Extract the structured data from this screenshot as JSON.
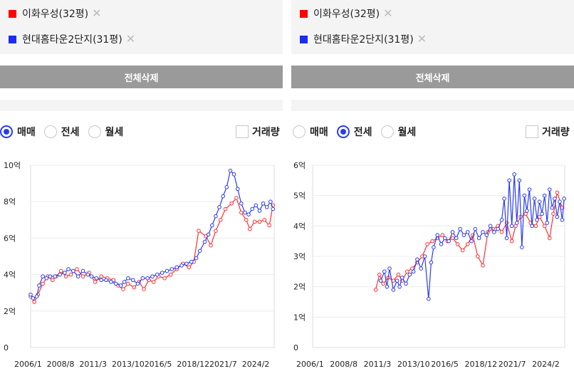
{
  "panels": [
    {
      "legend": [
        {
          "label": "이화우성(32평)",
          "color": "#ff0000"
        },
        {
          "label": "현대홈타운2단지(31평)",
          "color": "#1a2cf0"
        }
      ],
      "delete_all_label": "전체삭제",
      "radios": [
        {
          "label": "매매",
          "selected": true
        },
        {
          "label": "전세",
          "selected": false
        },
        {
          "label": "월세",
          "selected": false
        }
      ],
      "volume_label": "거래량"
    },
    {
      "legend": [
        {
          "label": "이화우성(32평)",
          "color": "#ff0000"
        },
        {
          "label": "현대홈타운2단지(31평)",
          "color": "#1a2cf0"
        }
      ],
      "delete_all_label": "전체삭제",
      "radios": [
        {
          "label": "매매",
          "selected": false
        },
        {
          "label": "전세",
          "selected": true
        },
        {
          "label": "월세",
          "selected": false
        }
      ],
      "volume_label": "거래량"
    }
  ],
  "chart_data": [
    {
      "type": "line",
      "title": "",
      "xlabel": "",
      "ylabel": "",
      "x_ticks": [
        "2006/1",
        "2008/8",
        "2011/3",
        "2013/10",
        "2016/5",
        "2018/12",
        "2021/7",
        "2024/2"
      ],
      "y_ticks": [
        "0",
        "2억",
        "4억",
        "6억",
        "8억",
        "10억"
      ],
      "xlim": [
        2006.0,
        2026.0
      ],
      "ylim": [
        0,
        10
      ],
      "grid": "horizontal",
      "series": [
        {
          "name": "이화우성(32평)",
          "color": "#ff3030",
          "points": [
            [
              2006.0,
              2.8
            ],
            [
              2006.3,
              2.5
            ],
            [
              2006.6,
              2.9
            ],
            [
              2007.0,
              3.5
            ],
            [
              2007.4,
              3.9
            ],
            [
              2007.8,
              3.7
            ],
            [
              2008.1,
              3.9
            ],
            [
              2008.5,
              4.2
            ],
            [
              2008.9,
              3.9
            ],
            [
              2009.3,
              4.0
            ],
            [
              2009.8,
              4.3
            ],
            [
              2010.3,
              3.9
            ],
            [
              2010.8,
              4.1
            ],
            [
              2011.3,
              3.6
            ],
            [
              2011.8,
              3.9
            ],
            [
              2012.3,
              3.8
            ],
            [
              2012.8,
              3.7
            ],
            [
              2013.2,
              3.4
            ],
            [
              2013.6,
              3.2
            ],
            [
              2014.0,
              3.5
            ],
            [
              2014.5,
              3.3
            ],
            [
              2014.9,
              3.6
            ],
            [
              2015.3,
              3.2
            ],
            [
              2015.7,
              3.7
            ],
            [
              2016.1,
              3.6
            ],
            [
              2016.5,
              3.9
            ],
            [
              2017.0,
              3.8
            ],
            [
              2017.5,
              4.0
            ],
            [
              2018.0,
              4.3
            ],
            [
              2018.5,
              4.6
            ],
            [
              2019.0,
              4.4
            ],
            [
              2019.4,
              4.7
            ],
            [
              2019.8,
              6.4
            ],
            [
              2020.4,
              6.1
            ],
            [
              2020.8,
              5.6
            ],
            [
              2021.2,
              6.4
            ],
            [
              2021.6,
              7.0
            ],
            [
              2022.0,
              7.6
            ],
            [
              2022.5,
              7.9
            ],
            [
              2022.9,
              8.2
            ],
            [
              2023.3,
              7.4
            ],
            [
              2023.7,
              7.0
            ],
            [
              2024.0,
              6.5
            ],
            [
              2024.4,
              6.9
            ],
            [
              2024.8,
              6.9
            ],
            [
              2025.2,
              7.0
            ],
            [
              2025.6,
              6.7
            ],
            [
              2025.9,
              7.8
            ]
          ]
        },
        {
          "name": "현대홈타운2단지(31평)",
          "color": "#2a3cf0",
          "points": [
            [
              2006.0,
              2.9
            ],
            [
              2006.2,
              2.7
            ],
            [
              2006.5,
              2.8
            ],
            [
              2006.7,
              3.4
            ],
            [
              2007.0,
              3.9
            ],
            [
              2007.3,
              3.8
            ],
            [
              2007.6,
              3.9
            ],
            [
              2008.0,
              3.9
            ],
            [
              2008.4,
              4.0
            ],
            [
              2008.8,
              4.1
            ],
            [
              2009.1,
              4.3
            ],
            [
              2009.5,
              4.2
            ],
            [
              2009.9,
              3.9
            ],
            [
              2010.3,
              4.2
            ],
            [
              2010.7,
              4.0
            ],
            [
              2011.0,
              3.9
            ],
            [
              2011.4,
              3.8
            ],
            [
              2011.8,
              3.7
            ],
            [
              2012.2,
              3.7
            ],
            [
              2012.6,
              3.6
            ],
            [
              2013.0,
              3.5
            ],
            [
              2013.4,
              3.4
            ],
            [
              2013.7,
              3.6
            ],
            [
              2014.0,
              3.8
            ],
            [
              2014.4,
              3.7
            ],
            [
              2014.8,
              3.5
            ],
            [
              2015.2,
              3.8
            ],
            [
              2015.6,
              3.8
            ],
            [
              2016.0,
              3.9
            ],
            [
              2016.4,
              4.0
            ],
            [
              2016.8,
              4.1
            ],
            [
              2017.2,
              4.2
            ],
            [
              2017.6,
              4.3
            ],
            [
              2018.0,
              4.4
            ],
            [
              2018.4,
              4.5
            ],
            [
              2018.8,
              4.6
            ],
            [
              2019.2,
              4.7
            ],
            [
              2019.6,
              4.9
            ],
            [
              2019.9,
              5.3
            ],
            [
              2020.3,
              5.8
            ],
            [
              2020.6,
              6.2
            ],
            [
              2020.9,
              6.7
            ],
            [
              2021.2,
              7.2
            ],
            [
              2021.5,
              7.7
            ],
            [
              2021.8,
              8.3
            ],
            [
              2022.1,
              8.8
            ],
            [
              2022.4,
              9.7
            ],
            [
              2022.7,
              9.5
            ],
            [
              2023.0,
              8.7
            ],
            [
              2023.3,
              7.9
            ],
            [
              2023.6,
              7.4
            ],
            [
              2023.9,
              7.3
            ],
            [
              2024.2,
              7.6
            ],
            [
              2024.5,
              7.8
            ],
            [
              2024.8,
              7.5
            ],
            [
              2025.1,
              7.9
            ],
            [
              2025.4,
              7.7
            ],
            [
              2025.7,
              8.0
            ],
            [
              2025.9,
              7.6
            ]
          ]
        }
      ]
    },
    {
      "type": "line",
      "title": "",
      "xlabel": "",
      "ylabel": "",
      "x_ticks": [
        "2006/1",
        "2008/8",
        "2011/3",
        "2013/10",
        "2016/5",
        "2018/12",
        "2021/7",
        "2024/2"
      ],
      "y_ticks": [
        "0",
        "1억",
        "2억",
        "3억",
        "4억",
        "5억",
        "6억"
      ],
      "xlim": [
        2006.0,
        2026.0
      ],
      "ylim": [
        0,
        6
      ],
      "grid": "horizontal",
      "series": [
        {
          "name": "이화우성(32평)",
          "color": "#ff3030",
          "points": [
            [
              2011.0,
              1.9
            ],
            [
              2011.3,
              2.4
            ],
            [
              2011.6,
              2.1
            ],
            [
              2012.0,
              2.3
            ],
            [
              2012.4,
              2.2
            ],
            [
              2012.8,
              2.4
            ],
            [
              2013.1,
              2.2
            ],
            [
              2013.5,
              2.5
            ],
            [
              2013.9,
              2.6
            ],
            [
              2014.3,
              2.8
            ],
            [
              2014.7,
              3.0
            ],
            [
              2015.1,
              3.4
            ],
            [
              2015.5,
              3.5
            ],
            [
              2015.9,
              3.6
            ],
            [
              2016.3,
              3.7
            ],
            [
              2016.7,
              3.5
            ],
            [
              2017.1,
              3.6
            ],
            [
              2017.5,
              3.4
            ],
            [
              2017.9,
              3.2
            ],
            [
              2018.3,
              3.4
            ],
            [
              2018.7,
              3.7
            ],
            [
              2019.1,
              3.0
            ],
            [
              2019.5,
              2.7
            ],
            [
              2019.9,
              3.8
            ],
            [
              2020.3,
              3.9
            ],
            [
              2020.7,
              4.0
            ],
            [
              2021.0,
              3.8
            ],
            [
              2021.4,
              4.1
            ],
            [
              2021.8,
              3.5
            ],
            [
              2022.1,
              4.0
            ],
            [
              2022.5,
              4.3
            ],
            [
              2022.9,
              4.4
            ],
            [
              2023.3,
              4.1
            ],
            [
              2023.7,
              4.0
            ],
            [
              2024.0,
              4.3
            ],
            [
              2024.4,
              4.0
            ],
            [
              2024.8,
              3.6
            ],
            [
              2025.1,
              4.4
            ],
            [
              2025.4,
              5.1
            ],
            [
              2025.8,
              4.6
            ]
          ]
        },
        {
          "name": "현대홈타운2단지(31평)",
          "color": "#2a3cf0",
          "points": [
            [
              2011.4,
              2.2
            ],
            [
              2011.7,
              2.5
            ],
            [
              2011.9,
              2.0
            ],
            [
              2012.1,
              2.6
            ],
            [
              2012.4,
              1.9
            ],
            [
              2012.7,
              2.2
            ],
            [
              2012.9,
              2.0
            ],
            [
              2013.1,
              2.3
            ],
            [
              2013.4,
              2.1
            ],
            [
              2013.7,
              2.4
            ],
            [
              2014.0,
              2.5
            ],
            [
              2014.3,
              2.9
            ],
            [
              2014.6,
              2.6
            ],
            [
              2014.9,
              3.0
            ],
            [
              2015.2,
              1.6
            ],
            [
              2015.4,
              2.8
            ],
            [
              2015.6,
              3.3
            ],
            [
              2015.9,
              3.7
            ],
            [
              2016.2,
              3.4
            ],
            [
              2016.5,
              3.6
            ],
            [
              2016.8,
              3.5
            ],
            [
              2017.1,
              3.8
            ],
            [
              2017.4,
              3.6
            ],
            [
              2017.7,
              3.9
            ],
            [
              2018.0,
              3.7
            ],
            [
              2018.3,
              3.8
            ],
            [
              2018.6,
              3.5
            ],
            [
              2018.9,
              3.9
            ],
            [
              2019.2,
              3.6
            ],
            [
              2019.5,
              3.8
            ],
            [
              2019.8,
              3.7
            ],
            [
              2020.1,
              4.0
            ],
            [
              2020.4,
              3.8
            ],
            [
              2020.7,
              3.9
            ],
            [
              2021.0,
              4.2
            ],
            [
              2021.2,
              4.9
            ],
            [
              2021.4,
              3.6
            ],
            [
              2021.6,
              5.5
            ],
            [
              2021.8,
              4.0
            ],
            [
              2022.0,
              5.7
            ],
            [
              2022.2,
              4.1
            ],
            [
              2022.4,
              5.5
            ],
            [
              2022.6,
              3.3
            ],
            [
              2022.8,
              5.0
            ],
            [
              2023.0,
              4.5
            ],
            [
              2023.2,
              5.2
            ],
            [
              2023.4,
              4.0
            ],
            [
              2023.6,
              4.9
            ],
            [
              2023.8,
              4.2
            ],
            [
              2024.0,
              4.8
            ],
            [
              2024.2,
              4.4
            ],
            [
              2024.4,
              5.0
            ],
            [
              2024.6,
              4.1
            ],
            [
              2024.8,
              5.2
            ],
            [
              2025.0,
              4.6
            ],
            [
              2025.2,
              4.9
            ],
            [
              2025.4,
              4.3
            ],
            [
              2025.6,
              4.8
            ],
            [
              2025.8,
              4.2
            ],
            [
              2025.95,
              4.9
            ]
          ]
        }
      ]
    }
  ]
}
